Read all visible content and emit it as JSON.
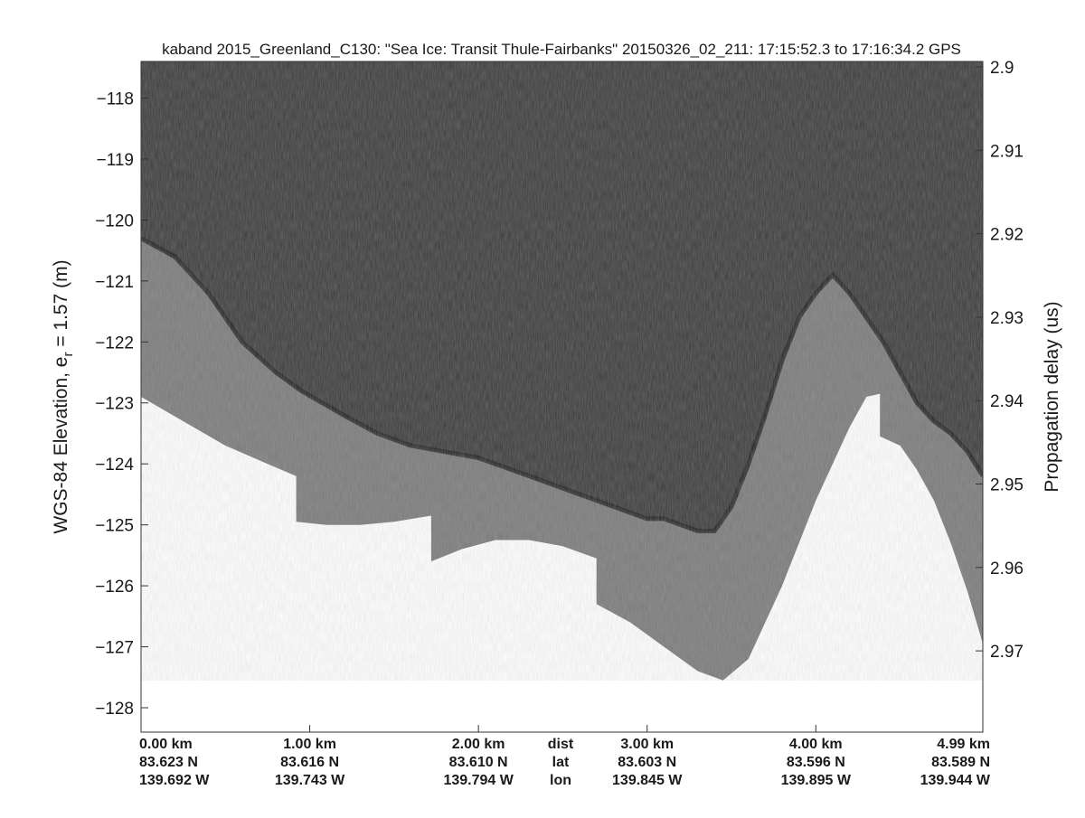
{
  "chart_data": {
    "type": "heatmap",
    "title": "kaband 2015_Greenland_C130: \"Sea Ice: Transit Thule-Fairbanks\"  20150326_02_211: 17:15:52.3 to 17:16:34.2 GPS",
    "ylabel_left": "WGS-84 Elevation, e",
    "ylabel_left_subscript": "r",
    "ylabel_left_suffix": " = 1.57 (m)",
    "ylabel_right": "Propagation delay (us)",
    "ylim_left": [
      -128.4,
      -117.4
    ],
    "y_ticks_left": [
      -118,
      -119,
      -120,
      -121,
      -122,
      -123,
      -124,
      -125,
      -126,
      -127,
      -128
    ],
    "y_ticks_left_labels": [
      "−118",
      "−119",
      "−120",
      "−121",
      "−122",
      "−123",
      "−124",
      "−125",
      "−126",
      "−127",
      "−128"
    ],
    "y_ticks_right": [
      "2.9",
      "2.91",
      "2.92",
      "2.93",
      "2.94",
      "2.95",
      "2.96",
      "2.97"
    ],
    "xlim_km": [
      0,
      4.99
    ],
    "x_ticks": [
      {
        "dist": "0.00 km",
        "km": 0.0,
        "lat": "83.623 N",
        "lon": "139.692 W"
      },
      {
        "dist": "1.00 km",
        "km": 1.0,
        "lat": "83.616 N",
        "lon": "139.743 W"
      },
      {
        "dist": "2.00 km",
        "km": 2.0,
        "lat": "83.610 N",
        "lon": "139.794 W"
      },
      {
        "dist": "3.00 km",
        "km": 3.0,
        "lat": "83.603 N",
        "lon": "139.845 W"
      },
      {
        "dist": "4.00 km",
        "km": 4.0,
        "lat": "83.596 N",
        "lon": "139.895 W"
      },
      {
        "dist": "4.99 km",
        "km": 4.99,
        "lat": "83.589 N",
        "lon": "139.944 W"
      }
    ],
    "row_labels": {
      "dist": "dist",
      "lat": "lat",
      "lon": "lon"
    },
    "surface_elevation": {
      "km": [
        0.0,
        0.2,
        0.4,
        0.6,
        0.8,
        0.95,
        1.2,
        1.4,
        1.6,
        1.8,
        2.0,
        2.2,
        2.4,
        2.6,
        2.8,
        3.0,
        3.1,
        3.2,
        3.3,
        3.4,
        3.5,
        3.6,
        3.7,
        3.8,
        3.9,
        4.0,
        4.1,
        4.2,
        4.3,
        4.4,
        4.5,
        4.6,
        4.7,
        4.8,
        4.9,
        4.99
      ],
      "elevation_m": [
        -120.3,
        -120.6,
        -121.2,
        -122.0,
        -122.5,
        -122.8,
        -123.2,
        -123.5,
        -123.7,
        -123.8,
        -123.9,
        -124.1,
        -124.3,
        -124.5,
        -124.7,
        -124.9,
        -124.9,
        -125.0,
        -125.1,
        -125.1,
        -124.7,
        -124.0,
        -123.2,
        -122.3,
        -121.6,
        -121.2,
        -120.9,
        -121.2,
        -121.6,
        -122.0,
        -122.5,
        -123.0,
        -123.3,
        -123.5,
        -123.8,
        -124.2
      ]
    },
    "data_floor_elevation": {
      "segments": [
        {
          "km": [
            0.0,
            0.25,
            0.5,
            0.75,
            0.92
          ],
          "elevation_m": [
            -122.9,
            -123.3,
            -123.7,
            -124.0,
            -124.2
          ]
        },
        {
          "km": [
            0.92,
            1.1,
            1.3,
            1.5,
            1.72
          ],
          "elevation_m": [
            -124.95,
            -125.0,
            -125.0,
            -124.95,
            -124.85
          ]
        },
        {
          "km": [
            1.72,
            1.9,
            2.1,
            2.3,
            2.5,
            2.7
          ],
          "elevation_m": [
            -125.6,
            -125.4,
            -125.25,
            -125.25,
            -125.35,
            -125.55
          ]
        },
        {
          "km": [
            2.7,
            2.9,
            3.1,
            3.3,
            3.45,
            3.6,
            3.8,
            4.0,
            4.2,
            4.3,
            4.38
          ],
          "elevation_m": [
            -126.3,
            -126.6,
            -127.0,
            -127.4,
            -127.55,
            -127.2,
            -126.0,
            -124.6,
            -123.4,
            -122.9,
            -122.85
          ]
        },
        {
          "km": [
            4.38,
            4.5,
            4.6,
            4.7,
            4.8,
            4.9,
            4.99
          ],
          "elevation_m": [
            -123.55,
            -123.7,
            -124.1,
            -124.6,
            -125.3,
            -126.1,
            -126.95
          ]
        }
      ]
    },
    "colormap": "gray",
    "grid": false,
    "legend": "none"
  }
}
